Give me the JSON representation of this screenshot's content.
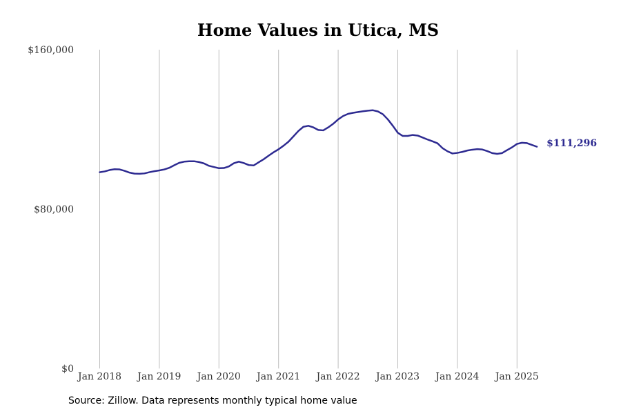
{
  "chart_data": {
    "type": "line",
    "title": "Home Values in Utica, MS",
    "xlabel": "",
    "ylabel": "",
    "ylim": [
      0,
      160000
    ],
    "y_ticks": [
      {
        "value": 0,
        "label": "$0"
      },
      {
        "value": 80000,
        "label": "$80,000"
      },
      {
        "value": 160000,
        "label": "$160,000"
      }
    ],
    "x_ticks": [
      {
        "value": "2018-01",
        "label": "Jan 2018"
      },
      {
        "value": "2019-01",
        "label": "Jan 2019"
      },
      {
        "value": "2020-01",
        "label": "Jan 2020"
      },
      {
        "value": "2021-01",
        "label": "Jan 2021"
      },
      {
        "value": "2022-01",
        "label": "Jan 2022"
      },
      {
        "value": "2023-01",
        "label": "Jan 2023"
      },
      {
        "value": "2024-01",
        "label": "Jan 2024"
      },
      {
        "value": "2025-01",
        "label": "Jan 2025"
      }
    ],
    "xlim": [
      "2017-12",
      "2025-12"
    ],
    "grid": {
      "vertical": true,
      "horizontal": false
    },
    "series": [
      {
        "color": "#2e2b91",
        "end_label": "$111,296",
        "x": [
          "2018-01",
          "2018-02",
          "2018-03",
          "2018-04",
          "2018-05",
          "2018-06",
          "2018-07",
          "2018-08",
          "2018-09",
          "2018-10",
          "2018-11",
          "2018-12",
          "2019-01",
          "2019-02",
          "2019-03",
          "2019-04",
          "2019-05",
          "2019-06",
          "2019-07",
          "2019-08",
          "2019-09",
          "2019-10",
          "2019-11",
          "2019-12",
          "2020-01",
          "2020-02",
          "2020-03",
          "2020-04",
          "2020-05",
          "2020-06",
          "2020-07",
          "2020-08",
          "2020-09",
          "2020-10",
          "2020-11",
          "2020-12",
          "2021-01",
          "2021-02",
          "2021-03",
          "2021-04",
          "2021-05",
          "2021-06",
          "2021-07",
          "2021-08",
          "2021-09",
          "2021-10",
          "2021-11",
          "2021-12",
          "2022-01",
          "2022-02",
          "2022-03",
          "2022-04",
          "2022-05",
          "2022-06",
          "2022-07",
          "2022-08",
          "2022-09",
          "2022-10",
          "2022-11",
          "2022-12",
          "2023-01",
          "2023-02",
          "2023-03",
          "2023-04",
          "2023-05",
          "2023-06",
          "2023-07",
          "2023-08",
          "2023-09",
          "2023-10",
          "2023-11",
          "2023-12",
          "2024-01",
          "2024-02",
          "2024-03",
          "2024-04",
          "2024-05",
          "2024-06",
          "2024-07",
          "2024-08",
          "2024-09",
          "2024-10",
          "2024-11",
          "2024-12",
          "2025-01",
          "2025-02",
          "2025-03",
          "2025-04",
          "2025-05"
        ],
        "y": [
          98500,
          98900,
          99600,
          100000,
          99900,
          99200,
          98300,
          97800,
          97700,
          97900,
          98500,
          99000,
          99400,
          99900,
          100700,
          102000,
          103200,
          103800,
          104000,
          104000,
          103600,
          102900,
          101700,
          101100,
          100500,
          100600,
          101400,
          103000,
          103800,
          103100,
          102100,
          101900,
          103500,
          105000,
          106800,
          108500,
          110000,
          111800,
          113800,
          116500,
          119200,
          121300,
          121800,
          121000,
          119700,
          119500,
          121000,
          122800,
          125000,
          126700,
          127800,
          128300,
          128700,
          129100,
          129400,
          129600,
          129000,
          127600,
          125000,
          121800,
          118300,
          116700,
          116700,
          117200,
          116900,
          115900,
          114900,
          114000,
          113000,
          110600,
          109000,
          107900,
          108200,
          108700,
          109400,
          109800,
          110100,
          109900,
          109100,
          108100,
          107700,
          108100,
          109600,
          111000,
          112700,
          113300,
          113100,
          112200,
          111296
        ]
      }
    ]
  },
  "source_note": "Source: Zillow. Data represents monthly typical home value"
}
